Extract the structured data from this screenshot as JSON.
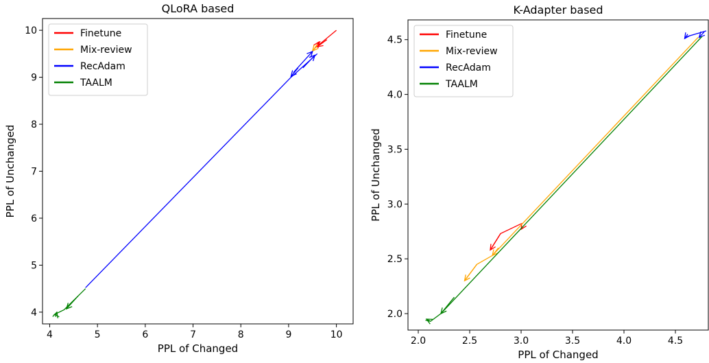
{
  "chart_data": [
    {
      "type": "line",
      "title": "QLoRA based",
      "xlabel": "PPL of Changed",
      "ylabel": "PPL of Unchanged",
      "xlim": [
        3.85,
        10.35
      ],
      "ylim": [
        3.75,
        10.25
      ],
      "xticks": [
        4,
        5,
        6,
        7,
        8,
        9,
        10
      ],
      "yticks": [
        4,
        5,
        6,
        7,
        8,
        9,
        10
      ],
      "legend_position": "top-left",
      "legend": [
        {
          "name": "Finetune",
          "color": "#ff0000"
        },
        {
          "name": "Mix-review",
          "color": "#ffa500"
        },
        {
          "name": "RecAdam",
          "color": "#0000ff"
        },
        {
          "name": "TAALM",
          "color": "#008000"
        }
      ],
      "series": [
        {
          "name": "Finetune",
          "color": "#ff0000",
          "points": [
            [
              10.0,
              10.0
            ],
            [
              9.55,
              9.62
            ]
          ],
          "arrows": [
            [
              9.8,
              9.8,
              9.6,
              9.65
            ],
            [
              9.55,
              9.62,
              9.63,
              9.75
            ]
          ]
        },
        {
          "name": "Mix-review",
          "color": "#ffa500",
          "points": [
            [
              9.6,
              9.7
            ],
            [
              9.5,
              9.55
            ],
            [
              9.45,
              9.5
            ]
          ],
          "arrows": [
            [
              9.6,
              9.68,
              9.5,
              9.56
            ]
          ]
        },
        {
          "name": "RecAdam",
          "color": "#0000ff",
          "points": [
            [
              9.6,
              9.5
            ],
            [
              9.05,
              9.0
            ],
            [
              4.75,
              4.52
            ]
          ],
          "arrows": [
            [
              9.2,
              9.2,
              9.05,
              9.02
            ],
            [
              9.1,
              9.1,
              9.5,
              9.55
            ],
            [
              9.3,
              9.2,
              9.55,
              9.47
            ]
          ]
        },
        {
          "name": "TAALM",
          "color": "#008000",
          "points": [
            [
              4.75,
              4.5
            ],
            [
              4.3,
              4.05
            ],
            [
              4.1,
              3.95
            ],
            [
              4.2,
              3.9
            ]
          ],
          "arrows": [
            [
              4.6,
              4.35,
              4.35,
              4.07
            ],
            [
              4.12,
              3.9,
              4.15,
              4.0
            ]
          ]
        }
      ]
    },
    {
      "type": "line",
      "title": "K-Adapter based",
      "xlabel": "PPL of Changed",
      "ylabel": "PPL of Unchanged",
      "xlim": [
        1.9,
        4.82
      ],
      "ylim": [
        1.85,
        4.68
      ],
      "xticks": [
        2.0,
        2.5,
        3.0,
        3.5,
        4.0,
        4.5
      ],
      "yticks": [
        2.0,
        2.5,
        3.0,
        3.5,
        4.0,
        4.5
      ],
      "legend_position": "top-left",
      "legend": [
        {
          "name": "Finetune",
          "color": "#ff0000"
        },
        {
          "name": "Mix-review",
          "color": "#ffa500"
        },
        {
          "name": "RecAdam",
          "color": "#0000ff"
        },
        {
          "name": "TAALM",
          "color": "#008000"
        }
      ],
      "series": [
        {
          "name": "Finetune",
          "color": "#ff0000",
          "points": [
            [
              3.0,
              2.82
            ],
            [
              2.8,
              2.73
            ],
            [
              2.7,
              2.58
            ]
          ],
          "arrows": [
            [
              2.8,
              2.73,
              2.7,
              2.58
            ],
            [
              3.02,
              2.8,
              3.0,
              2.77
            ]
          ]
        },
        {
          "name": "Mix-review",
          "color": "#ffa500",
          "points": [
            [
              4.72,
              4.52
            ],
            [
              2.72,
              2.53
            ],
            [
              2.57,
              2.45
            ],
            [
              2.45,
              2.3
            ]
          ],
          "arrows": [
            [
              2.57,
              2.45,
              2.45,
              2.3
            ],
            [
              2.78,
              2.6,
              2.72,
              2.53
            ]
          ]
        },
        {
          "name": "RecAdam",
          "color": "#0000ff",
          "points": [
            [
              4.8,
              4.58
            ],
            [
              4.62,
              4.53
            ],
            [
              4.59,
              4.51
            ]
          ],
          "arrows": [
            [
              4.78,
              4.57,
              4.73,
              4.52
            ],
            [
              4.62,
              4.55,
              4.59,
              4.51
            ]
          ]
        },
        {
          "name": "TAALM",
          "color": "#008000",
          "points": [
            [
              4.76,
              4.53
            ],
            [
              2.22,
              2.0
            ],
            [
              2.12,
              1.93
            ],
            [
              2.07,
              1.94
            ]
          ],
          "arrows": [
            [
              2.35,
              2.15,
              2.22,
              2.0
            ],
            [
              2.12,
              1.93,
              2.08,
              1.95
            ]
          ]
        }
      ]
    }
  ]
}
